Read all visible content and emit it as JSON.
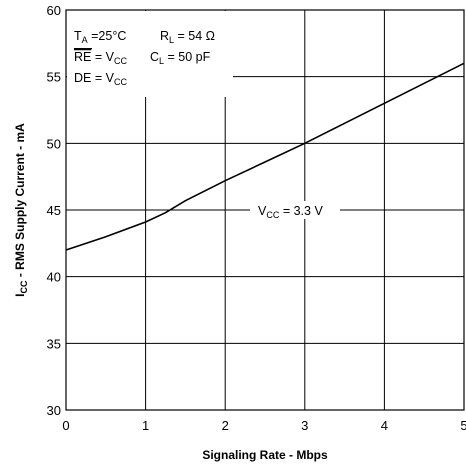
{
  "chart_data": {
    "type": "line",
    "title": "",
    "xlabel": "Signaling Rate - Mbps",
    "ylabel": {
      "prefix": "I",
      "sub": "CC",
      "suffix": " - RMS Supply Current - mA"
    },
    "xlim": [
      0,
      5
    ],
    "ylim": [
      30,
      60
    ],
    "xticks": [
      "0",
      "1",
      "2",
      "3",
      "4",
      "5"
    ],
    "yticks": [
      "30",
      "35",
      "40",
      "45",
      "50",
      "55",
      "60"
    ],
    "grid": true,
    "series": [
      {
        "name": "VCC = 3.3 V",
        "x": [
          0,
          0.5,
          1,
          1.25,
          1.5,
          2,
          2.5,
          3,
          3.5,
          4,
          4.5,
          5
        ],
        "y": [
          42,
          43,
          44.1,
          44.8,
          45.7,
          47.2,
          48.6,
          50,
          51.5,
          53,
          54.5,
          56
        ]
      }
    ],
    "annotations": {
      "conditions": [
        {
          "text": "T",
          "sub": "A",
          "rest": " =25°C"
        },
        {
          "text": "R",
          "sub": "L",
          "rest": " = 54 Ω"
        },
        {
          "overline": "RE",
          "text": " = V",
          "sub": "CC"
        },
        {
          "text": "C",
          "sub": "L",
          "rest": " = 50 pF"
        },
        {
          "text": "DE = V",
          "sub": "CC"
        }
      ],
      "series_label": {
        "text": "V",
        "sub": "CC",
        "rest": " = 3.3 V"
      }
    }
  }
}
